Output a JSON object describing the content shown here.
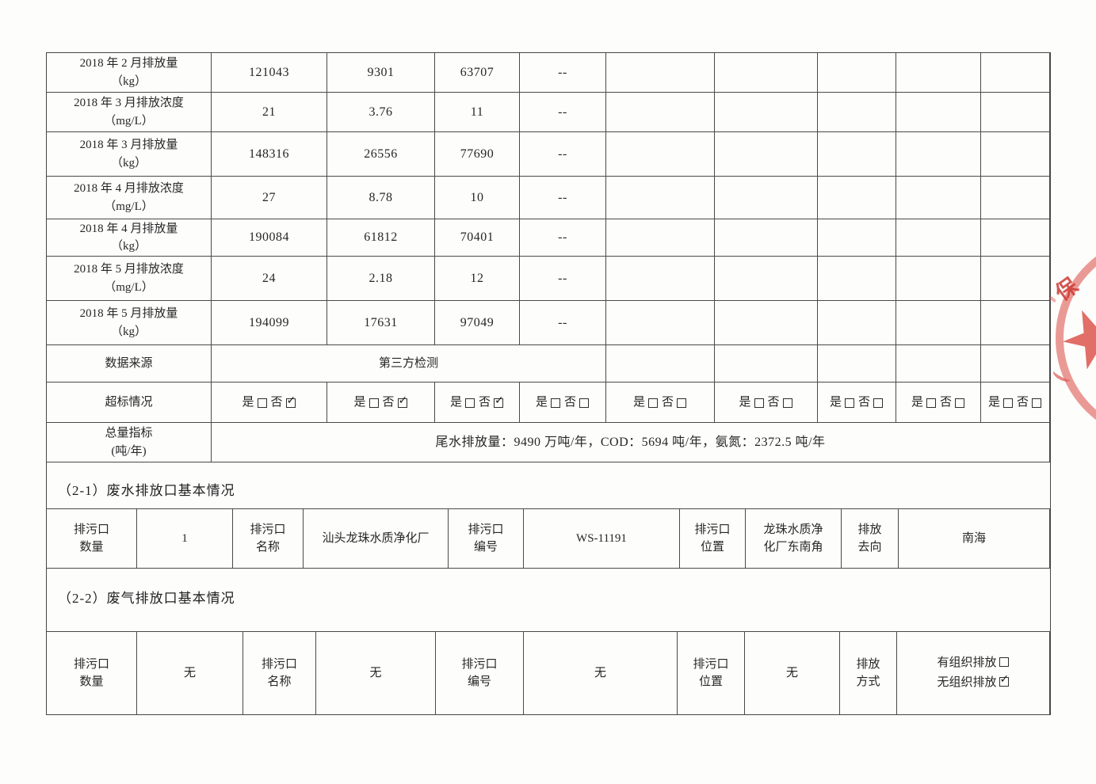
{
  "stamp": {
    "char": "保",
    "color": "#db584f"
  },
  "emissions_table": {
    "data_rows": [
      {
        "label": [
          "2018 年 2 月排放量",
          "（kg）"
        ],
        "values": [
          "121043",
          "9301",
          "63707",
          "--",
          "",
          "",
          "",
          "",
          ""
        ]
      },
      {
        "label": [
          "2018 年 3 月排放浓度",
          "（mg/L）"
        ],
        "values": [
          "21",
          "3.76",
          "11",
          "--",
          "",
          "",
          "",
          "",
          ""
        ]
      },
      {
        "label": [
          "2018 年 3 月排放量",
          "（kg）"
        ],
        "values": [
          "148316",
          "26556",
          "77690",
          "--",
          "",
          "",
          "",
          "",
          ""
        ]
      },
      {
        "label": [
          "2018 年 4 月排放浓度",
          "（mg/L）"
        ],
        "values": [
          "27",
          "8.78",
          "10",
          "--",
          "",
          "",
          "",
          "",
          ""
        ]
      },
      {
        "label": [
          "2018 年 4 月排放量",
          "（kg）"
        ],
        "values": [
          "190084",
          "61812",
          "70401",
          "--",
          "",
          "",
          "",
          "",
          ""
        ]
      },
      {
        "label": [
          "2018 年 5 月排放浓度",
          "（mg/L）"
        ],
        "values": [
          "24",
          "2.18",
          "12",
          "--",
          "",
          "",
          "",
          "",
          ""
        ]
      },
      {
        "label": [
          "2018 年 5 月排放量",
          "（kg）"
        ],
        "values": [
          "194099",
          "17631",
          "97049",
          "--",
          "",
          "",
          "",
          "",
          ""
        ]
      }
    ],
    "data_source_row": {
      "label": "数据来源",
      "merged_value": "第三方检测",
      "trailing_empty_cells": 5
    },
    "exceed_row": {
      "label": "超标情况",
      "yes_text": "是",
      "no_text": "否",
      "check_glyph": "✓",
      "cells": [
        {
          "yes_checked": false,
          "no_checked": true
        },
        {
          "yes_checked": false,
          "no_checked": true
        },
        {
          "yes_checked": false,
          "no_checked": true
        },
        {
          "yes_checked": false,
          "no_checked": false
        },
        {
          "yes_checked": false,
          "no_checked": false
        },
        {
          "yes_checked": false,
          "no_checked": false
        },
        {
          "yes_checked": false,
          "no_checked": false
        },
        {
          "yes_checked": false,
          "no_checked": false
        },
        {
          "yes_checked": false,
          "no_checked": false
        }
      ]
    },
    "total_row": {
      "label": [
        "总量指标",
        "(吨/年)"
      ],
      "value": "尾水排放量：9490 万吨/年，COD：5694 吨/年，氨氮：2372.5 吨/年"
    }
  },
  "section_2_1": {
    "title": "（2-1）废水排放口基本情况",
    "cells": [
      {
        "kind": "label",
        "text": [
          "排污口",
          "数量"
        ]
      },
      {
        "kind": "value",
        "text": [
          "1"
        ]
      },
      {
        "kind": "label",
        "text": [
          "排污口",
          "名称"
        ]
      },
      {
        "kind": "value",
        "text": [
          "汕头龙珠水质净化厂"
        ]
      },
      {
        "kind": "label",
        "text": [
          "排污口",
          "编号"
        ]
      },
      {
        "kind": "value",
        "text": [
          "WS-11191"
        ]
      },
      {
        "kind": "label",
        "text": [
          "排污口",
          "位置"
        ]
      },
      {
        "kind": "value",
        "text": [
          "龙珠水质净",
          "化厂东南角"
        ]
      },
      {
        "kind": "label",
        "text": [
          "排放",
          "去向"
        ]
      },
      {
        "kind": "value",
        "text": [
          "南海"
        ]
      }
    ]
  },
  "section_2_2": {
    "title": "（2-2）废气排放口基本情况",
    "cells": [
      {
        "kind": "label",
        "text": [
          "排污口",
          "数量"
        ]
      },
      {
        "kind": "value",
        "text": [
          "无"
        ]
      },
      {
        "kind": "label",
        "text": [
          "排污口",
          "名称"
        ]
      },
      {
        "kind": "value",
        "text": [
          "无"
        ]
      },
      {
        "kind": "label",
        "text": [
          "排污口",
          "编号"
        ]
      },
      {
        "kind": "value",
        "text": [
          "无"
        ]
      },
      {
        "kind": "label",
        "text": [
          "排污口",
          "位置"
        ]
      },
      {
        "kind": "value",
        "text": [
          "无"
        ]
      },
      {
        "kind": "label",
        "text": [
          "排放",
          "方式"
        ]
      },
      {
        "kind": "value",
        "checkbox_lines": [
          {
            "text": "有组织排放",
            "checked": false
          },
          {
            "text": "无组织排放",
            "checked": true
          }
        ]
      }
    ]
  }
}
